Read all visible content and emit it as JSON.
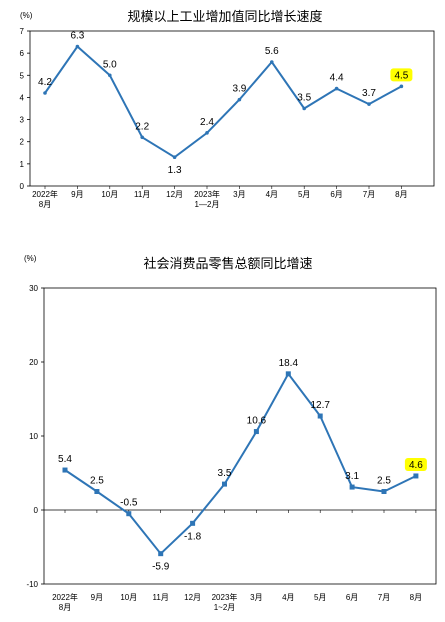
{
  "chart_data": [
    {
      "type": "line",
      "title": "规模以上工业增加值同比增长速度",
      "unit": "(%)",
      "categories": [
        [
          "2022年",
          "8月"
        ],
        [
          "9月"
        ],
        [
          "10月"
        ],
        [
          "11月"
        ],
        [
          "12月"
        ],
        [
          "2023年",
          "1—2月"
        ],
        [
          "3月"
        ],
        [
          "4月"
        ],
        [
          "5月"
        ],
        [
          "6月"
        ],
        [
          "7月"
        ],
        [
          "8月"
        ]
      ],
      "values": [
        4.2,
        6.3,
        5.0,
        2.2,
        1.3,
        2.4,
        3.9,
        5.6,
        3.5,
        4.4,
        3.7,
        4.5
      ],
      "labels": [
        "4.2",
        "6.3",
        "5.0",
        "2.2",
        "1.3",
        "2.4",
        "3.9",
        "5.6",
        "3.5",
        "4.4",
        "3.7",
        "4.5"
      ],
      "yticks": [
        "0",
        "1",
        "2",
        "3",
        "4",
        "5",
        "6",
        "7"
      ],
      "ylim": [
        0,
        7
      ],
      "line_color": "#2e75b6",
      "highlight_color": "#ffff00",
      "highlight_index": 11,
      "grid": false,
      "frame": true
    },
    {
      "type": "line",
      "title": "社会消费品零售总额同比增速",
      "unit": "(%)",
      "categories": [
        [
          "2022年",
          "8月"
        ],
        [
          "9月"
        ],
        [
          "10月"
        ],
        [
          "11月"
        ],
        [
          "12月"
        ],
        [
          "2023年",
          "1~2月"
        ],
        [
          "3月"
        ],
        [
          "4月"
        ],
        [
          "5月"
        ],
        [
          "6月"
        ],
        [
          "7月"
        ],
        [
          "8月"
        ]
      ],
      "values": [
        5.4,
        2.5,
        -0.5,
        -5.9,
        -1.8,
        3.5,
        10.6,
        18.4,
        12.7,
        3.1,
        2.5,
        4.6
      ],
      "labels": [
        "5.4",
        "2.5",
        "-0.5",
        "-5.9",
        "-1.8",
        "3.5",
        "10.6",
        "18.4",
        "12.7",
        "3.1",
        "2.5",
        "4.6"
      ],
      "yticks": [
        "-10",
        "0",
        "10",
        "20",
        "30"
      ],
      "ylim": [
        -10,
        30
      ],
      "line_color": "#2e75b6",
      "highlight_color": "#ffff00",
      "highlight_index": 11,
      "grid": false,
      "frame": true
    }
  ]
}
